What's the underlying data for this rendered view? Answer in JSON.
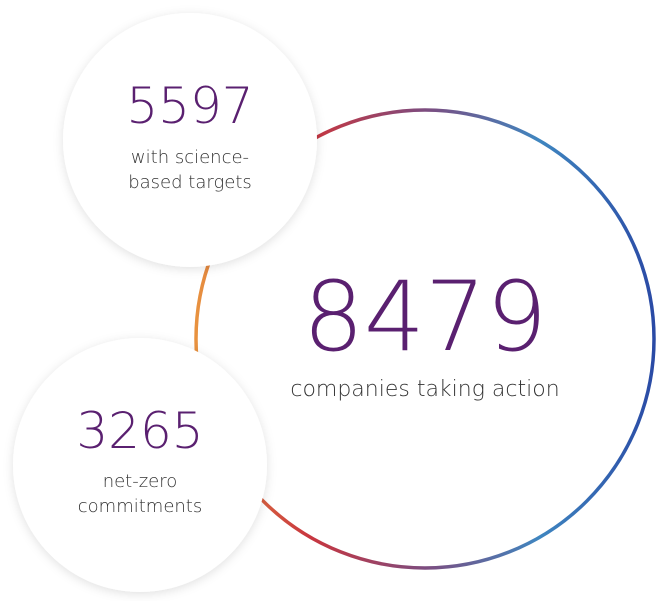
{
  "stats": [
    {
      "value": 8479,
      "lines": [
        "companies taking action"
      ]
    },
    {
      "value": 5597,
      "lines": [
        "with science-",
        "based targets"
      ]
    },
    {
      "value": 3265,
      "lines": [
        "net-zero",
        "commitments"
      ]
    }
  ]
}
